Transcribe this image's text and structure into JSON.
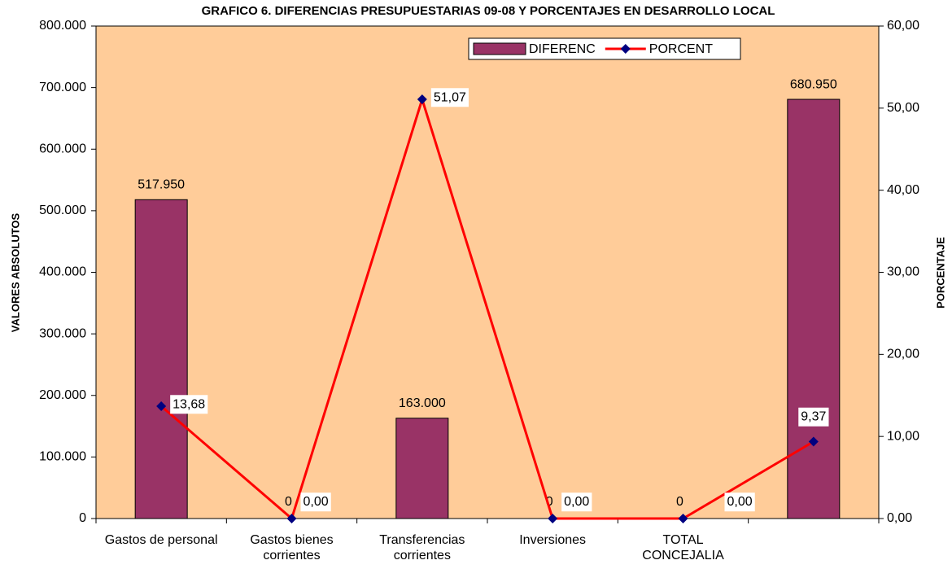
{
  "chart_data": {
    "type": "bar_line",
    "title": "GRAFICO 6. DIFERENCIAS PRESUPUESTARIAS 09-08 Y PORCENTAJES EN DESARROLLO LOCAL",
    "y_label": "VALORES ABSOLUTOS",
    "y2_label": "PORCENTAJE",
    "categories": [
      "Gastos de personal",
      "Gastos bienes corrientes",
      "Transferencias corrientes",
      "Inversiones",
      "TOTAL CONCEJALIA",
      null
    ],
    "series": [
      {
        "name": "DIFERENC",
        "type": "bar",
        "color": "#993366",
        "values": [
          517950,
          0,
          163000,
          0,
          0,
          680950
        ],
        "value_labels": [
          "517.950",
          "0",
          "163.000",
          "0",
          "0",
          "680.950"
        ]
      },
      {
        "name": "PORCENT",
        "type": "line",
        "axis": "y2",
        "color": "#ff0000",
        "marker_color": "#000080",
        "values": [
          13.68,
          0,
          51.07,
          0,
          0,
          9.37
        ],
        "value_labels": [
          "13,68",
          "0,00",
          "51,07",
          "0,00",
          "0,00",
          "9,37"
        ]
      }
    ],
    "ylim": [
      0,
      800000
    ],
    "yticks": [
      0,
      {
        "value": 100000,
        "label": "100.000"
      },
      {
        "value": 200000,
        "label": "200.000"
      },
      {
        "value": 300000,
        "label": "300.000"
      },
      {
        "value": 400000,
        "label": "400.000"
      },
      {
        "value": 500000,
        "label": "500.000"
      },
      {
        "value": 600000,
        "label": "600.000"
      },
      {
        "value": 700000,
        "label": "700.000"
      },
      {
        "value": 800000,
        "label": "800.000"
      }
    ],
    "y2lim": [
      0,
      60
    ],
    "y2ticks": [
      {
        "value": 0,
        "label": "0,00"
      },
      {
        "value": 10,
        "label": "10,00"
      },
      {
        "value": 20,
        "label": "20,00"
      },
      {
        "value": 30,
        "label": "30,00"
      },
      {
        "value": 40,
        "label": "40,00"
      },
      {
        "value": 50,
        "label": "50,00"
      },
      {
        "value": 60,
        "label": "60,00"
      }
    ],
    "plot_background": "#ffcc99",
    "legend": "top-right"
  }
}
